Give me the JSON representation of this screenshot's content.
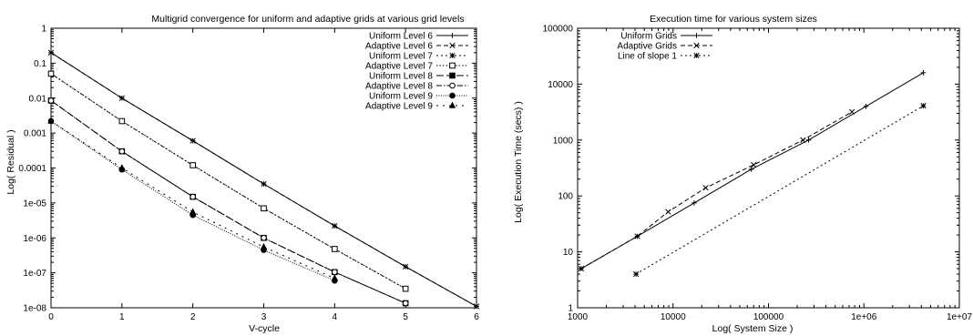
{
  "chart_data": [
    {
      "type": "line",
      "title": "Multigrid convergence for uniform and adaptive grids at various grid levels",
      "xlabel": "V-cycle",
      "ylabel": "Log( Residual )",
      "xscale": "linear",
      "yscale": "log",
      "xlim": [
        0,
        6
      ],
      "ylim": [
        1e-08,
        1
      ],
      "xticks": [
        "0",
        "1",
        "2",
        "3",
        "4",
        "5",
        "6"
      ],
      "yticks": [
        "1e-08",
        "1e-07",
        "1e-06",
        "1e-05",
        "0.0001",
        "0.001",
        "0.01",
        "0.1",
        "1"
      ],
      "grid": false,
      "legend_position": "top-right",
      "series": [
        {
          "name": "Uniform Level 6",
          "marker": "plus",
          "dash": "solid",
          "x": [
            0,
            1,
            2,
            3,
            4,
            5,
            6
          ],
          "y": [
            0.2,
            0.01,
            0.0006,
            3.5e-05,
            2.2e-06,
            1.5e-07,
            1.1e-08
          ]
        },
        {
          "name": "Adaptive Level 6",
          "marker": "cross",
          "dash": "dash",
          "x": [
            0,
            1,
            2,
            3,
            4,
            5,
            6
          ],
          "y": [
            0.2,
            0.01,
            0.0006,
            3.5e-05,
            2.2e-06,
            1.5e-07,
            1.1e-08
          ]
        },
        {
          "name": "Uniform Level 7",
          "marker": "star",
          "dash": "dot",
          "x": [
            0,
            1,
            2,
            3,
            4,
            5
          ],
          "y": [
            0.05,
            0.0022,
            0.00012,
            7e-06,
            4.8e-07,
            3.5e-08
          ]
        },
        {
          "name": "Adaptive Level 7",
          "marker": "square-open",
          "dash": "dot-short",
          "x": [
            0,
            1,
            2,
            3,
            4,
            5
          ],
          "y": [
            0.05,
            0.0022,
            0.00012,
            7e-06,
            4.8e-07,
            3.5e-08
          ]
        },
        {
          "name": "Uniform Level 8",
          "marker": "square-filled",
          "dash": "dash-long",
          "x": [
            0,
            1,
            2,
            3,
            4,
            5
          ],
          "y": [
            0.0085,
            0.0003,
            1.5e-05,
            1e-06,
            1.05e-07,
            1.35e-08
          ]
        },
        {
          "name": "Adaptive Level 8",
          "marker": "circle-open",
          "dash": "dash-dot",
          "x": [
            0,
            1,
            2,
            3,
            4,
            5
          ],
          "y": [
            0.0085,
            0.0003,
            1.5e-05,
            1e-06,
            1.05e-07,
            1.35e-08
          ]
        },
        {
          "name": "Uniform Level 9",
          "marker": "circle-filled",
          "dash": "dot-fine",
          "x": [
            0,
            1,
            2,
            3,
            4
          ],
          "y": [
            0.0022,
            9e-05,
            4.5e-06,
            4.5e-07,
            6e-08
          ]
        },
        {
          "name": "Adaptive Level 9",
          "marker": "triangle-filled",
          "dash": "dot-wide",
          "x": [
            0,
            1,
            2,
            3,
            4
          ],
          "y": [
            0.0022,
            0.0001,
            5.5e-06,
            5.5e-07,
            7e-08
          ]
        }
      ]
    },
    {
      "type": "line",
      "title": "Execution time for various system sizes",
      "xlabel": "Log( System Size )",
      "ylabel": "Log( Execution Time (secs) )",
      "xscale": "log",
      "yscale": "log",
      "xlim": [
        1000,
        10000000
      ],
      "ylim": [
        1,
        100000
      ],
      "xticks": [
        "1000",
        "10000",
        "100000",
        "1e+06",
        "1e+07"
      ],
      "yticks": [
        "1",
        "10",
        "100",
        "1000",
        "10000",
        "100000"
      ],
      "grid": false,
      "legend_position": "top-left",
      "series": [
        {
          "name": "Uniform Grids",
          "marker": "plus",
          "dash": "solid",
          "x": [
            1089,
            4225,
            16641,
            66049,
            263169,
            1050625,
            4198401
          ],
          "y": [
            5,
            19,
            75,
            300,
            1000,
            4000,
            16000
          ]
        },
        {
          "name": "Adaptive Grids",
          "marker": "cross",
          "dash": "dash",
          "x": [
            1089,
            4225,
            8900,
            22000,
            70000,
            230000,
            750000
          ],
          "y": [
            5,
            19,
            52,
            140,
            360,
            1000,
            3200
          ]
        },
        {
          "name": "Line of slope 1",
          "marker": "star",
          "dash": "dot",
          "x": [
            4096,
            4194304
          ],
          "y": [
            4,
            4096
          ]
        }
      ]
    }
  ]
}
